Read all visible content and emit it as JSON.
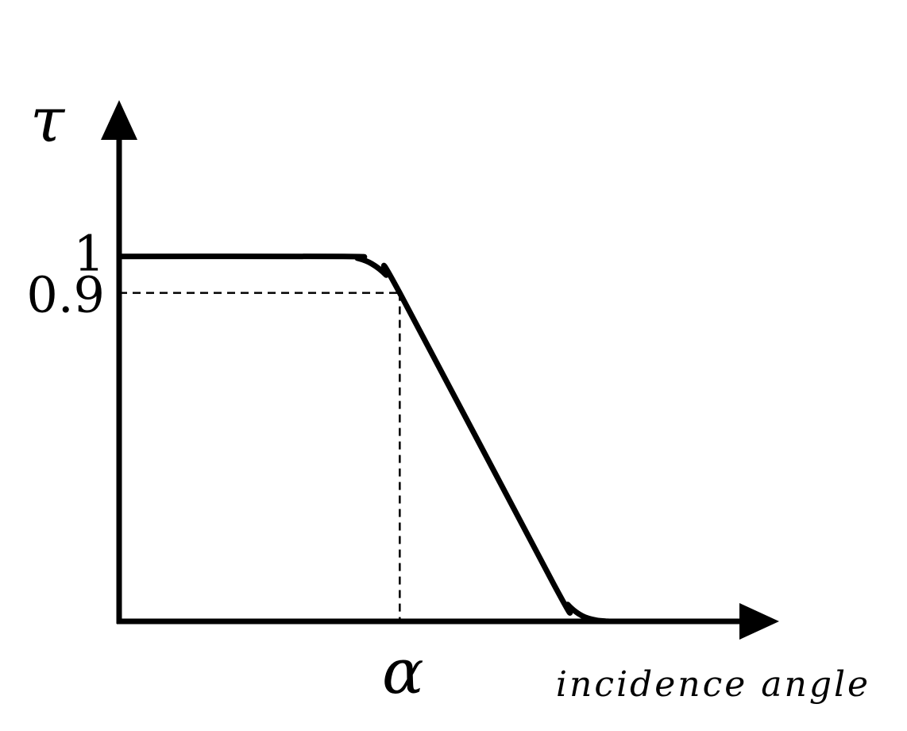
{
  "chart_data": {
    "type": "line",
    "ylabel": "τ",
    "xlabel": "incidence angle",
    "x_tick_labels": [
      "α"
    ],
    "y_tick_labels": [
      "1",
      "0.9"
    ],
    "y_ticks": [
      1,
      0.9
    ],
    "x_ticks_note": "α marks the incidence angle at which τ = 0.9",
    "ylim": [
      0,
      1.35
    ],
    "xlim": [
      0,
      2.25
    ],
    "grid": false,
    "legend": "none",
    "axis_ticks": false,
    "series": [
      {
        "x": [
          0,
          0.8,
          0.85,
          0.9,
          0.95,
          1.0,
          1.55,
          1.6,
          1.65,
          1.7,
          1.75
        ],
        "y": [
          1,
          1,
          0.995,
          0.98,
          0.95,
          0.9,
          0.1,
          0.045,
          0.015,
          0.003,
          0
        ],
        "color": "#000000"
      }
    ],
    "reference_lines": [
      {
        "from": [
          0,
          0.9
        ],
        "to": [
          1.0,
          0.9
        ],
        "style": "dashed"
      },
      {
        "from": [
          1.0,
          0.9
        ],
        "to": [
          1.0,
          0
        ],
        "style": "dashed"
      }
    ]
  }
}
